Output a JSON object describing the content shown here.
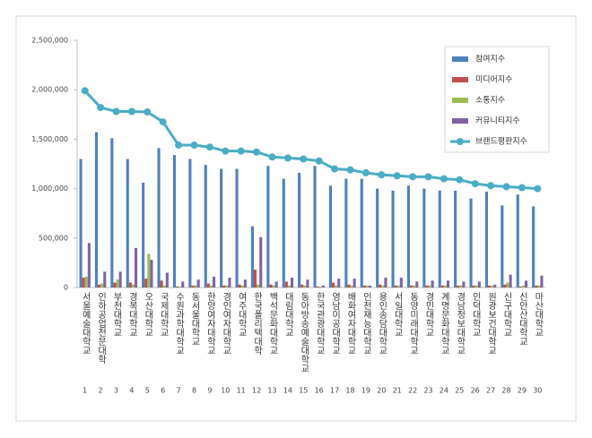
{
  "chart_data": {
    "type": "bar",
    "categories": [
      "서울예술대학교",
      "인하공업전문대학",
      "부천대학교",
      "경복대학교",
      "오산대학교",
      "국제대학교",
      "수원과학대학교",
      "동서울대학교",
      "한양여자대학교",
      "경인여자대학교",
      "여주대학교",
      "한국폴리텍대학",
      "백석문화대학교",
      "대림대학교",
      "동아방송예술대학교",
      "한국관광대학교",
      "영남이공대학교",
      "배화여자대학교",
      "인천재능대학교",
      "용인송담대학교",
      "서일대학교",
      "동양미래대학교",
      "경민대학교",
      "계명문화대학교",
      "경남정보대학교",
      "인덕대학교",
      "원광보건대학교",
      "신구대학교",
      "신안산대학교",
      "마산대학교"
    ],
    "ranks": [
      1,
      2,
      3,
      4,
      5,
      6,
      7,
      8,
      9,
      10,
      11,
      12,
      13,
      14,
      15,
      16,
      17,
      18,
      19,
      20,
      21,
      22,
      23,
      24,
      25,
      26,
      27,
      28,
      29,
      30
    ],
    "series": [
      {
        "name": "참여지수",
        "color": "#4f81bd",
        "values": [
          1300000,
          1570000,
          1510000,
          1300000,
          1060000,
          1410000,
          1340000,
          1300000,
          1240000,
          1200000,
          1200000,
          620000,
          1230000,
          1100000,
          1160000,
          1230000,
          1030000,
          1100000,
          1100000,
          1000000,
          980000,
          1030000,
          1000000,
          980000,
          980000,
          900000,
          970000,
          830000,
          940000,
          820000
        ]
      },
      {
        "name": "미디어지수",
        "color": "#c0504d",
        "values": [
          100000,
          30000,
          50000,
          50000,
          90000,
          70000,
          10000,
          20000,
          40000,
          20000,
          30000,
          180000,
          30000,
          60000,
          30000,
          10000,
          50000,
          30000,
          20000,
          30000,
          20000,
          20000,
          20000,
          20000,
          20000,
          20000,
          20000,
          30000,
          10000,
          20000
        ]
      },
      {
        "name": "소통지수",
        "color": "#9bbb59",
        "values": [
          110000,
          40000,
          80000,
          30000,
          340000,
          20000,
          10000,
          20000,
          20000,
          20000,
          20000,
          30000,
          20000,
          20000,
          20000,
          10000,
          20000,
          20000,
          20000,
          20000,
          20000,
          20000,
          20000,
          20000,
          20000,
          20000,
          20000,
          50000,
          20000,
          20000
        ]
      },
      {
        "name": "커뮤니티지수",
        "color": "#8064a2",
        "values": [
          450000,
          160000,
          160000,
          400000,
          280000,
          150000,
          60000,
          80000,
          110000,
          100000,
          80000,
          510000,
          60000,
          100000,
          80000,
          20000,
          90000,
          90000,
          20000,
          100000,
          100000,
          60000,
          70000,
          70000,
          60000,
          60000,
          30000,
          130000,
          70000,
          120000
        ]
      },
      {
        "name": "브랜드평판지수",
        "color": "#4bacc6",
        "type": "line",
        "values": [
          1990000,
          1820000,
          1780000,
          1780000,
          1775000,
          1675000,
          1440000,
          1440000,
          1420000,
          1380000,
          1380000,
          1370000,
          1320000,
          1310000,
          1300000,
          1280000,
          1200000,
          1190000,
          1160000,
          1140000,
          1130000,
          1120000,
          1120000,
          1100000,
          1090000,
          1050000,
          1030000,
          1020000,
          1010000,
          1000000
        ]
      }
    ],
    "ylim": [
      0,
      2500000
    ],
    "yticks": [
      {
        "value": 0,
        "label": "0"
      },
      {
        "value": 500000,
        "label": "500,000"
      },
      {
        "value": 1000000,
        "label": "1,000,000"
      },
      {
        "value": 1500000,
        "label": "1,500,000"
      },
      {
        "value": 2000000,
        "label": "2,000,000"
      },
      {
        "value": 2500000,
        "label": "2,500,000"
      }
    ],
    "legend": "upper right"
  }
}
